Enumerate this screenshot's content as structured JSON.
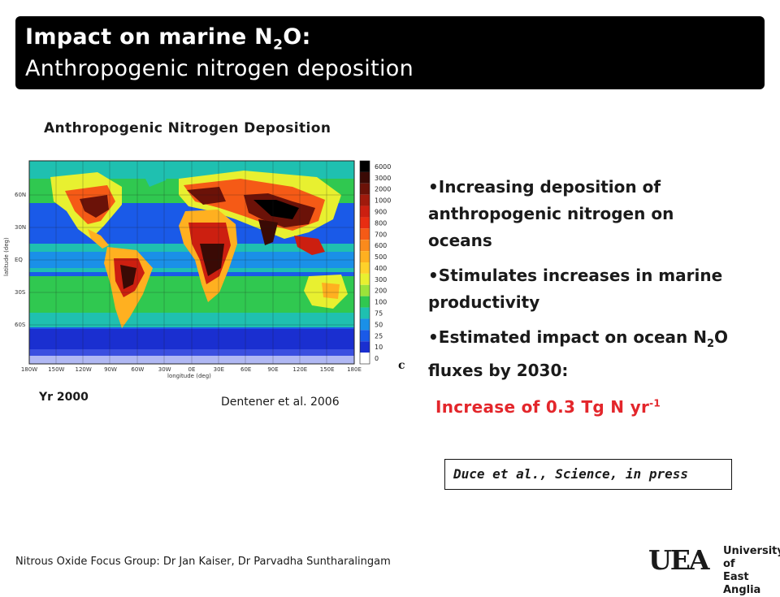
{
  "header": {
    "title_main": "Impact on marine N",
    "title_sub": "2",
    "title_end": "O:",
    "subtitle": "Anthropogenic nitrogen deposition"
  },
  "figure": {
    "title": "Anthropogenic Nitrogen Deposition",
    "panel_letter": "c",
    "year_label": "Yr 2000",
    "source": "Dentener et al. 2006",
    "y_axis_title": "latitude (deg)",
    "x_axis_title": "longitude (deg)",
    "lat_ticks": [
      "60N",
      "30N",
      "EQ",
      "30S",
      "60S"
    ],
    "lon_ticks": [
      "180W",
      "150W",
      "120W",
      "90W",
      "60W",
      "30W",
      "0E",
      "30E",
      "60E",
      "90E",
      "120E",
      "150E",
      "180E"
    ],
    "colorbar_levels": [
      "6000",
      "3000",
      "2000",
      "1000",
      "900",
      "800",
      "700",
      "600",
      "500",
      "400",
      "300",
      "200",
      "100",
      "75",
      "50",
      "25",
      "10",
      "0"
    ],
    "colorbar_colors": [
      "#000000",
      "#3a0a05",
      "#6b1208",
      "#a01a0c",
      "#cc1f10",
      "#e82d12",
      "#f55a16",
      "#fa8a1c",
      "#ffb020",
      "#ffd12a",
      "#e8f030",
      "#9be33a",
      "#30c850",
      "#1fc0b0",
      "#1a90e8",
      "#1a5ae8",
      "#1a2fd0",
      "#ffffff"
    ]
  },
  "bullets": [
    {
      "text": "Increasing deposition of anthropogenic nitrogen on oceans"
    },
    {
      "text": "Stimulates increases in marine productivity"
    },
    {
      "pre": "Estimated impact on ocean N",
      "sub": "2",
      "post": "O fluxes by 2030:"
    }
  ],
  "highlight": {
    "text": "Increase of 0.3 Tg N yr",
    "sup": "-1"
  },
  "citation": "Duce et al., Science, in press",
  "footer": "Nitrous Oxide Focus Group: Dr Jan Kaiser, Dr Parvadha Suntharalingam",
  "logo": {
    "mark": "UEA",
    "line1": "University of",
    "line2": "East Anglia"
  },
  "colors": {
    "title_bar_bg": "#000000",
    "highlight": "#e3262b",
    "ocean_low": "#1a5ae8",
    "ocean_mid": "#30c850",
    "land_high": "#6b1208"
  }
}
